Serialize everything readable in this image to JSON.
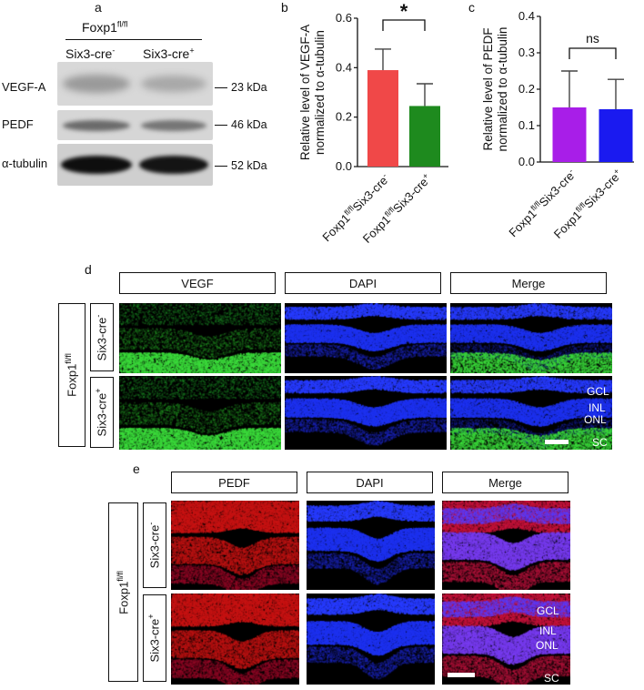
{
  "panel_a": {
    "letter": "a",
    "group_title": "Foxp1",
    "group_sup": "fl/fl",
    "col1_label": "Six3-cre",
    "col1_sup": "-",
    "col2_label": "Six3-cre",
    "col2_sup": "+",
    "rows": [
      {
        "name": "VEGF-A",
        "kda": "23 kDa"
      },
      {
        "name": "PEDF",
        "kda": "46 kDa"
      },
      {
        "name": "α-tubulin",
        "kda": "52 kDa"
      }
    ]
  },
  "chart_data": [
    {
      "letter": "b",
      "type": "bar",
      "categories": [
        "Foxp1fl/flSix3-cre-",
        "Foxp1fl/flSix3-cre+"
      ],
      "category_parts": [
        {
          "main": "Foxp1",
          "sup1": "fl/fl",
          "mid": "Six3-cre",
          "sup2": "-"
        },
        {
          "main": "Foxp1",
          "sup1": "fl/fl",
          "mid": "Six3-cre",
          "sup2": "+"
        }
      ],
      "values": [
        0.39,
        0.245
      ],
      "errors": [
        0.085,
        0.09
      ],
      "colors": [
        "#f04848",
        "#1e8a1e"
      ],
      "ylabel_line1": "Relative level of VEGF-A",
      "ylabel_line2": "normalized to α-tubulin",
      "ylim": [
        0,
        0.6
      ],
      "yticks": [
        "0.0",
        "0.2",
        "0.4",
        "0.6"
      ],
      "significance": "*"
    },
    {
      "letter": "c",
      "type": "bar",
      "categories": [
        "Foxp1fl/flSix3-cre-",
        "Foxp1fl/flSix3-cre+"
      ],
      "category_parts": [
        {
          "main": "Foxp1",
          "sup1": "fl/fl",
          "mid": "Six3-cre",
          "sup2": "-"
        },
        {
          "main": "Foxp1",
          "sup1": "fl/fl",
          "mid": "Six3-cre",
          "sup2": "+"
        }
      ],
      "values": [
        0.15,
        0.145
      ],
      "errors": [
        0.1,
        0.082
      ],
      "colors": [
        "#a81ee8",
        "#1a1af0"
      ],
      "ylabel_line1": "Relative level of PEDF",
      "ylabel_line2": "normalized to α-tubulin",
      "ylim": [
        0,
        0.4
      ],
      "yticks": [
        "0.0",
        "0.1",
        "0.2",
        "0.3",
        "0.4"
      ],
      "significance": "ns"
    }
  ],
  "panel_d": {
    "letter": "d",
    "headers": [
      "VEGF",
      "DAPI",
      "Merge"
    ],
    "group": "Foxp1",
    "group_sup": "fl/fl",
    "row1": "Six3-cre",
    "row1_sup": "-",
    "row2": "Six3-cre",
    "row2_sup": "+",
    "layers": [
      "GCL",
      "INL",
      "ONL",
      "SC"
    ]
  },
  "panel_e": {
    "letter": "e",
    "headers": [
      "PEDF",
      "DAPI",
      "Merge"
    ],
    "group": "Foxp1",
    "group_sup": "fl/fl",
    "row1": "Six3-cre",
    "row1_sup": "-",
    "row2": "Six3-cre",
    "row2_sup": "+",
    "layers": [
      "GCL",
      "INL",
      "ONL",
      "SC"
    ]
  }
}
